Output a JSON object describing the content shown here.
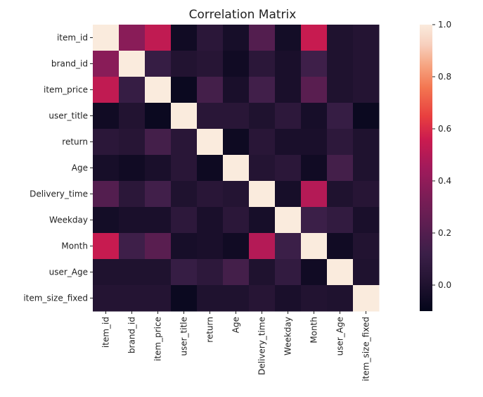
{
  "chart_data": {
    "type": "heatmap",
    "title": "Correlation Matrix",
    "labels": [
      "item_id",
      "brand_id",
      "item_price",
      "user_title",
      "return",
      "Age",
      "Delivery_time",
      "Weekday",
      "Month",
      "user_Age",
      "item_size_fixed"
    ],
    "matrix": [
      [
        1.0,
        0.38,
        0.53,
        -0.05,
        0.05,
        -0.03,
        0.2,
        -0.04,
        0.55,
        0.0,
        0.02
      ],
      [
        0.38,
        1.0,
        0.1,
        0.01,
        0.03,
        -0.05,
        0.05,
        -0.02,
        0.13,
        0.0,
        0.02
      ],
      [
        0.53,
        0.1,
        1.0,
        -0.07,
        0.15,
        -0.02,
        0.14,
        -0.02,
        0.22,
        0.0,
        0.02
      ],
      [
        -0.05,
        0.01,
        -0.07,
        1.0,
        0.04,
        0.04,
        0.0,
        0.06,
        -0.03,
        0.1,
        -0.07
      ],
      [
        0.05,
        0.03,
        0.15,
        0.04,
        1.0,
        -0.06,
        0.04,
        -0.02,
        -0.02,
        0.06,
        0.0
      ],
      [
        -0.03,
        -0.05,
        -0.02,
        0.04,
        -0.06,
        1.0,
        0.02,
        0.05,
        -0.05,
        0.15,
        0.0
      ],
      [
        0.2,
        0.05,
        0.14,
        0.0,
        0.04,
        0.02,
        1.0,
        -0.03,
        0.5,
        0.0,
        0.03
      ],
      [
        -0.04,
        -0.02,
        -0.02,
        0.06,
        -0.02,
        0.05,
        -0.03,
        1.0,
        0.12,
        0.08,
        -0.02
      ],
      [
        0.55,
        0.13,
        0.22,
        -0.03,
        -0.02,
        -0.05,
        0.5,
        0.12,
        1.0,
        -0.05,
        0.01
      ],
      [
        0.0,
        0.0,
        0.0,
        0.1,
        0.06,
        0.15,
        0.0,
        0.08,
        -0.05,
        1.0,
        0.0
      ],
      [
        0.02,
        0.02,
        0.02,
        -0.07,
        0.0,
        0.0,
        0.03,
        -0.02,
        0.01,
        0.0,
        1.0
      ]
    ],
    "vmin": -0.1,
    "vmax": 1.0,
    "colorbar_ticks": [
      {
        "value": 1.0,
        "label": "1.0"
      },
      {
        "value": 0.8,
        "label": "0.8"
      },
      {
        "value": 0.6,
        "label": "0.6"
      },
      {
        "value": 0.4,
        "label": "0.4"
      },
      {
        "value": 0.2,
        "label": "0.2"
      },
      {
        "value": 0.0,
        "label": "0.0"
      }
    ],
    "colormap": [
      {
        "t": 0.0,
        "color": "#03051a"
      },
      {
        "t": 0.1,
        "color": "#221331"
      },
      {
        "t": 0.2,
        "color": "#3b1f48"
      },
      {
        "t": 0.3,
        "color": "#5c1e51"
      },
      {
        "t": 0.4,
        "color": "#7c1d56"
      },
      {
        "t": 0.5,
        "color": "#a11a5b"
      },
      {
        "t": 0.6,
        "color": "#cb1b4f"
      },
      {
        "t": 0.68,
        "color": "#e83f3f"
      },
      {
        "t": 0.78,
        "color": "#f37651"
      },
      {
        "t": 0.86,
        "color": "#f6a683"
      },
      {
        "t": 0.93,
        "color": "#f7cfbd"
      },
      {
        "t": 1.0,
        "color": "#faebdd"
      }
    ],
    "grid": false,
    "legend": "colorbar-right"
  }
}
